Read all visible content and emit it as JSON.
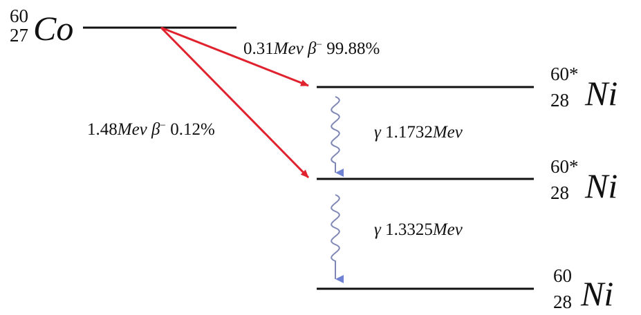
{
  "nuclides": {
    "co60": {
      "mass": "60",
      "z": "27",
      "symbol": "Co"
    },
    "ni60_excited_upper": {
      "mass": "60*",
      "z": "28",
      "symbol": "Ni"
    },
    "ni60_excited_lower": {
      "mass": "60*",
      "z": "28",
      "symbol": "Ni"
    },
    "ni60_ground": {
      "mass": "60",
      "z": "28",
      "symbol": "Ni"
    }
  },
  "transitions": {
    "beta_1": {
      "energy": "0.31",
      "unit": "Mev",
      "particle": "β",
      "charge": "−",
      "branch": "99.88%"
    },
    "beta_2": {
      "energy": "1.48",
      "unit": "Mev",
      "particle": "β",
      "charge": "−",
      "branch": "0.12%"
    },
    "gamma_1": {
      "symbol": "γ",
      "energy": "1.1732",
      "unit": "Mev"
    },
    "gamma_2": {
      "symbol": "γ",
      "energy": "1.3325",
      "unit": "Mev"
    }
  },
  "colors": {
    "level_line": "#111111",
    "beta_arrow": "#e0222e",
    "gamma_wave": "#7d86b5",
    "gamma_arrow": "#6f82d2",
    "text": "#111111"
  }
}
